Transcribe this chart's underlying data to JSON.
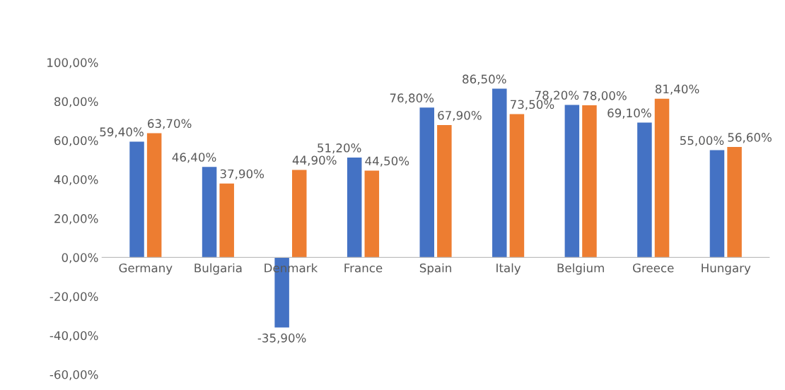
{
  "chart_data": {
    "type": "bar",
    "categories": [
      "Germany",
      "Bulgaria",
      "Denmark",
      "France",
      "Spain",
      "Italy",
      "Belgium",
      "Greece",
      "Hungary"
    ],
    "series": [
      {
        "color": "#4472c4",
        "values": [
          59.4,
          46.4,
          -35.9,
          51.2,
          76.8,
          86.5,
          78.2,
          69.1,
          55.0
        ],
        "value_labels": [
          "59,40%",
          "46,40%",
          "-35,90%",
          "51,20%",
          "76,80%",
          "86,50%",
          "78,20%",
          "69,10%",
          "55,00%"
        ]
      },
      {
        "color": "#ed7d31",
        "values": [
          63.7,
          37.9,
          44.9,
          44.5,
          67.9,
          73.5,
          78.0,
          81.4,
          56.6
        ],
        "value_labels": [
          "63,70%",
          "37,90%",
          "44,90%",
          "44,50%",
          "67,90%",
          "73,50%",
          "78,00%",
          "81,40%",
          "56,60%"
        ]
      }
    ],
    "ylim": [
      -60,
      100
    ],
    "yticks": [
      {
        "value": -60,
        "label": "-60,00%"
      },
      {
        "value": -40,
        "label": "-40,00%"
      },
      {
        "value": -20,
        "label": "-20,00%"
      },
      {
        "value": 0,
        "label": "0,00%"
      },
      {
        "value": 20,
        "label": "20,00%"
      },
      {
        "value": 40,
        "label": "40,00%"
      },
      {
        "value": 60,
        "label": "60,00%"
      },
      {
        "value": 80,
        "label": "80,00%"
      },
      {
        "value": 100,
        "label": "100,00%"
      }
    ],
    "grid": false,
    "legend": false
  }
}
